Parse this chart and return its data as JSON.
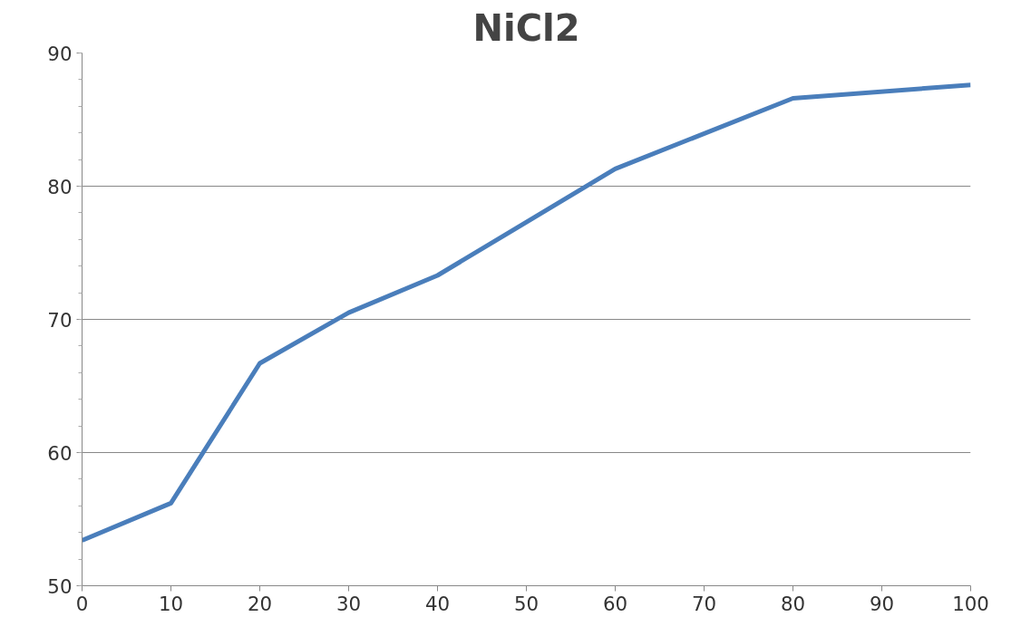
{
  "chart_data": {
    "type": "line",
    "title": "NiCl2",
    "x": [
      0,
      10,
      20,
      30,
      40,
      60,
      80,
      100
    ],
    "series": [
      {
        "color": "#4a7ebb",
        "values": [
          53.4,
          56.2,
          66.7,
          70.5,
          73.3,
          81.3,
          86.6,
          87.6
        ]
      }
    ],
    "xlim": [
      0,
      100
    ],
    "xticks": [
      0,
      10,
      20,
      30,
      40,
      50,
      60,
      70,
      80,
      90,
      100
    ],
    "ylim": [
      50,
      90
    ],
    "yticks": [
      50,
      60,
      70,
      80,
      90
    ],
    "grid": "y",
    "marker": "none",
    "line_style": "solid"
  }
}
